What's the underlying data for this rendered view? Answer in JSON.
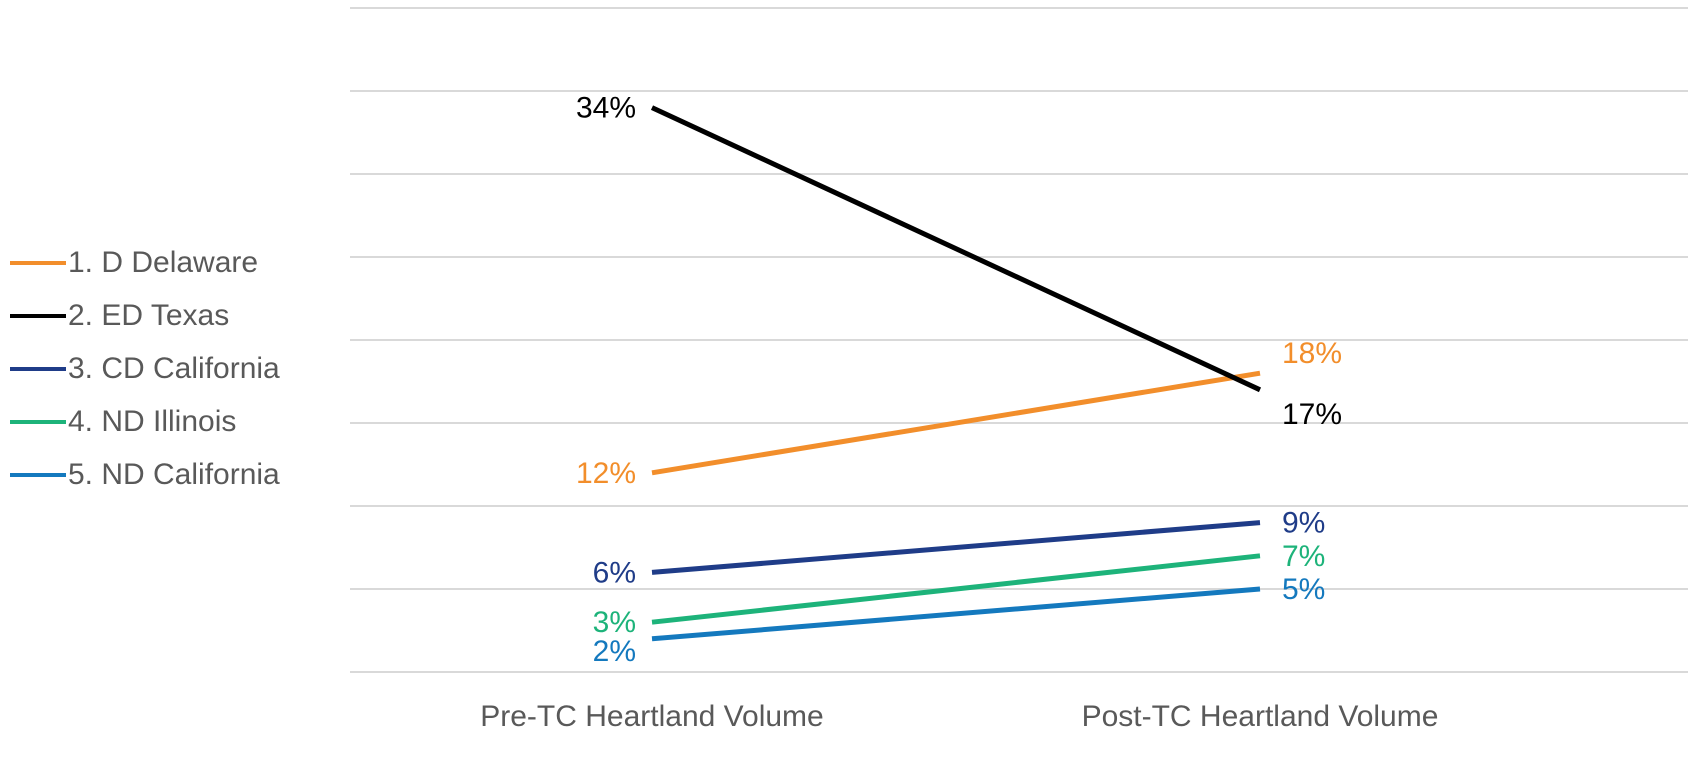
{
  "chart_data": {
    "type": "line",
    "categories": [
      "Pre-TC Heartland Volume",
      "Post-TC Heartland Volume"
    ],
    "series": [
      {
        "name": "1. D Delaware",
        "values": [
          12,
          18
        ],
        "labels": [
          "12%",
          "18%"
        ],
        "color": "#F28E2B"
      },
      {
        "name": "2. ED Texas",
        "values": [
          34,
          17
        ],
        "labels": [
          "34%",
          "17%"
        ],
        "color": "#000000"
      },
      {
        "name": "3. CD California",
        "values": [
          6,
          9
        ],
        "labels": [
          "6%",
          "9%"
        ],
        "color": "#1F3C88"
      },
      {
        "name": "4. ND Illinois",
        "values": [
          3,
          7
        ],
        "labels": [
          "3%",
          "7%"
        ],
        "color": "#1DB37A"
      },
      {
        "name": "5. ND California",
        "values": [
          2,
          5
        ],
        "labels": [
          "2%",
          "5%"
        ],
        "color": "#1479BE"
      }
    ],
    "ylim": [
      0,
      40
    ],
    "grid": true,
    "legend": "left"
  }
}
